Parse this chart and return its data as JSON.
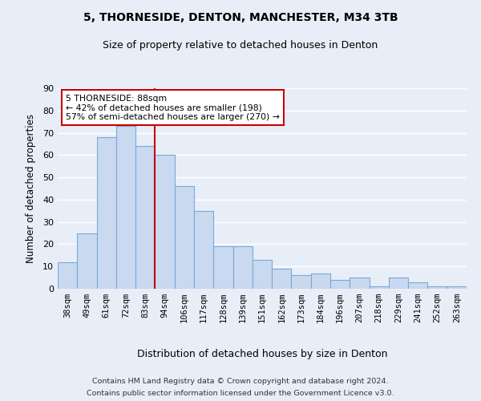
{
  "title1": "5, THORNESIDE, DENTON, MANCHESTER, M34 3TB",
  "title2": "Size of property relative to detached houses in Denton",
  "xlabel": "Distribution of detached houses by size in Denton",
  "ylabel": "Number of detached properties",
  "categories": [
    "38sqm",
    "49sqm",
    "61sqm",
    "72sqm",
    "83sqm",
    "94sqm",
    "106sqm",
    "117sqm",
    "128sqm",
    "139sqm",
    "151sqm",
    "162sqm",
    "173sqm",
    "184sqm",
    "196sqm",
    "207sqm",
    "218sqm",
    "229sqm",
    "241sqm",
    "252sqm",
    "263sqm"
  ],
  "values": [
    12,
    25,
    68,
    73,
    64,
    60,
    46,
    35,
    19,
    19,
    13,
    9,
    6,
    7,
    4,
    5,
    1,
    5,
    3,
    1,
    1
  ],
  "bar_color": "#c9d9f0",
  "bar_edge_color": "#7aaad4",
  "vline_x": 4.5,
  "vline_color": "#cc0000",
  "annotation_line1": "5 THORNESIDE: 88sqm",
  "annotation_line2": "← 42% of detached houses are smaller (198)",
  "annotation_line3": "57% of semi-detached houses are larger (270) →",
  "annotation_box_color": "#ffffff",
  "annotation_box_edge": "#cc0000",
  "ylim": [
    0,
    90
  ],
  "yticks": [
    0,
    10,
    20,
    30,
    40,
    50,
    60,
    70,
    80,
    90
  ],
  "bg_color": "#e8eef8",
  "plot_bg": "#e8eef8",
  "grid_color": "#ffffff",
  "footer1": "Contains HM Land Registry data © Crown copyright and database right 2024.",
  "footer2": "Contains public sector information licensed under the Government Licence v3.0."
}
